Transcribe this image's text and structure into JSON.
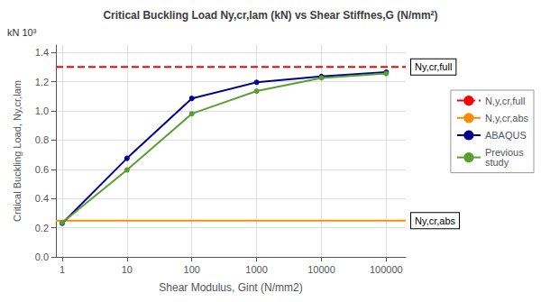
{
  "chart_data": {
    "type": "line",
    "title": "Critical Buckling Load Ny,cr,lam (kN) vs Shear Stiffnes,G (N/mm²)",
    "xlabel": "Shear Modulus, Gint (N/mm2)",
    "ylabel": "Critical Buckling Load, Ny,cr,lam",
    "annotations": [
      {
        "text": "kN 10³"
      }
    ],
    "log": "x",
    "x": [
      1,
      10,
      100,
      1000,
      10000,
      100000
    ],
    "series": [
      {
        "name": "ABAQUS",
        "color": "#00008B",
        "marker": "circle",
        "line_style": "solid",
        "values": [
          0.23,
          0.675,
          1.085,
          1.195,
          1.235,
          1.265
        ]
      },
      {
        "name": "Previous\nstudy",
        "color": "#5A9E32",
        "marker": "circle",
        "line_style": "solid",
        "values": [
          0.235,
          0.595,
          0.98,
          1.135,
          1.225,
          1.255
        ]
      }
    ],
    "hlines": [
      {
        "name": "N,y,cr,full",
        "color": "#FF0000",
        "line_style": "dashed",
        "y": 1.3,
        "annotation": "Ny,cr,full"
      },
      {
        "name": "N,y,cr,abs",
        "color": "#FF8C00",
        "line_style": "solid",
        "y": 0.248,
        "annotation": "Ny,cr,abs"
      }
    ],
    "xlim": [
      0.8,
      200000
    ],
    "xticks": [
      1,
      10,
      100,
      1000,
      10000,
      100000
    ],
    "ylim": [
      0,
      1.45
    ],
    "yticks": [
      {
        "value": 0,
        "label": "0.0"
      },
      0.2,
      0.4,
      0.6,
      0.8,
      {
        "value": 1.0,
        "label": "1.0"
      },
      1.2,
      1.4
    ],
    "grid": true,
    "legend": "right"
  }
}
